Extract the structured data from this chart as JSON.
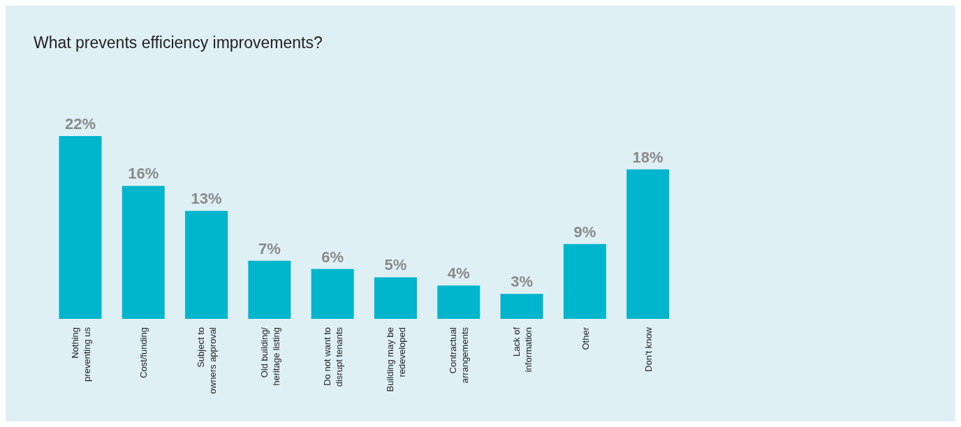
{
  "chart_data": {
    "type": "bar",
    "title": "What prevents efficiency improvements?",
    "categories": [
      "Nothing preventing us",
      "Cost/funding",
      "Subject to owners approval",
      "Old building/ heritage listing",
      "Do not want to disrupt tenants",
      "Building may be redeveloped",
      "Contractual arrangements",
      "Lack of information",
      "Other",
      "Don't know"
    ],
    "values": [
      22,
      16,
      13,
      7,
      6,
      5,
      4,
      3,
      9,
      18
    ],
    "value_labels": [
      "22%",
      "16%",
      "13%",
      "7%",
      "6%",
      "5%",
      "4%",
      "3%",
      "9%",
      "18%"
    ],
    "color": "#00b5cc"
  }
}
